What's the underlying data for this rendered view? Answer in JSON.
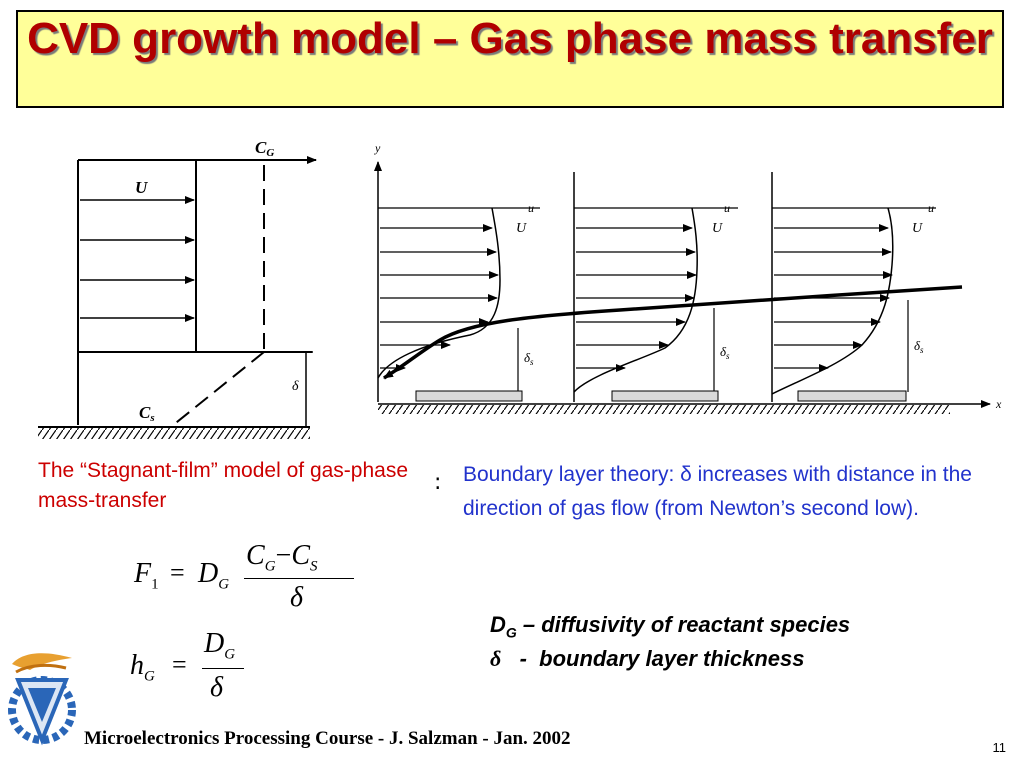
{
  "slide": {
    "title": "CVD growth model – Gas phase mass transfer",
    "page_number": "11",
    "footer": "Microelectronics Processing Course - J. Salzman - Jan. 2002"
  },
  "left_figure": {
    "cg_label": "C",
    "cg_sub": "G",
    "u_label": "U",
    "cs_label": "C",
    "cs_sub": "s",
    "delta_label": "δ"
  },
  "right_figure": {
    "y_label": "y",
    "x_label": "x",
    "u_small": "u",
    "u_big": "U",
    "delta_s": "δ",
    "delta_s_sub": "s"
  },
  "captions": {
    "left": "The “Stagnant-film” model of gas-phase mass-transfer",
    "right": "Boundary layer theory: δ increases with distance in the direction of gas flow (from Newton’s second low).",
    "bullet": ":"
  },
  "equations": {
    "f1_lhs": "F",
    "f1_lhs_sub": "1",
    "f1_d": "D",
    "f1_d_sub": "G",
    "f1_num_a": "C",
    "f1_num_a_sub": "G",
    "f1_minus": "−",
    "f1_num_b": "C",
    "f1_num_b_sub": "S",
    "f1_den": "δ",
    "hg_lhs": "h",
    "hg_lhs_sub": "G",
    "hg_num": "D",
    "hg_num_sub": "G",
    "hg_den": "δ",
    "eq_sign": "="
  },
  "definitions": {
    "dg_symbol": "D",
    "dg_sub": "G",
    "dg_text": " – diffusivity of reactant species",
    "delta_symbol": "δ",
    "delta_text": "   -  boundary layer thickness"
  }
}
